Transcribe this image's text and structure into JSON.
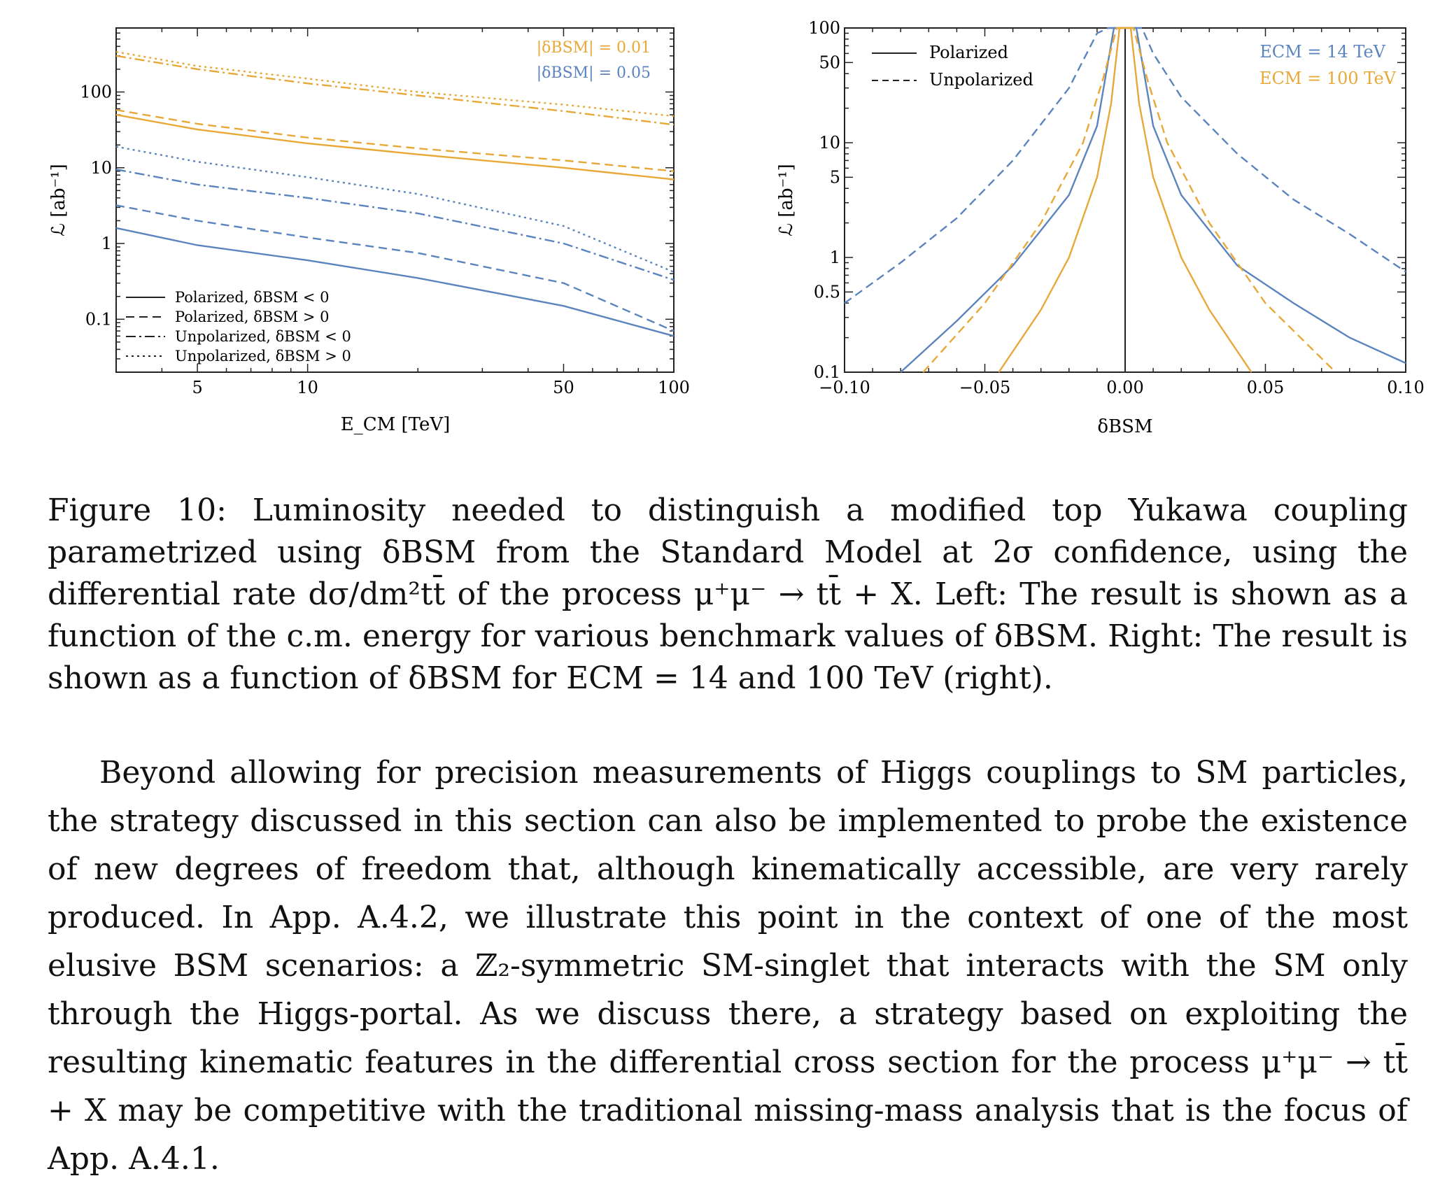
{
  "colors": {
    "orange": "#E8A838",
    "blue": "#5B84BE",
    "axis": "#222222"
  },
  "chart_data": [
    {
      "type": "line",
      "title": "",
      "xlabel": "E_CM [TeV]",
      "ylabel": "ℒ [ab⁻¹]",
      "xscale": "log",
      "yscale": "log",
      "xlim": [
        3,
        100
      ],
      "ylim": [
        0.02,
        700
      ],
      "xticks": [
        5,
        10,
        50,
        100
      ],
      "xtick_labels": [
        "5",
        "10",
        "50",
        "100"
      ],
      "yticks": [
        0.1,
        1,
        10,
        100
      ],
      "ytick_labels": [
        "0.1",
        "1",
        "10",
        "100"
      ],
      "grid": false,
      "legend_top": [
        "|δBSM| = 0.01",
        "|δBSM| = 0.05"
      ],
      "legend_bottom": [
        "Polarized, δBSM < 0",
        "Polarized, δBSM > 0",
        "Unpolarized, δBSM < 0",
        "Unpolarized, δBSM > 0"
      ],
      "series": [
        {
          "color": "orange",
          "style": "solid",
          "x": [
            3,
            5,
            10,
            20,
            50,
            100
          ],
          "y": [
            50,
            32,
            21,
            15,
            10,
            7
          ]
        },
        {
          "color": "orange",
          "style": "dashed",
          "x": [
            3,
            5,
            10,
            20,
            50,
            100
          ],
          "y": [
            58,
            38,
            25,
            18,
            12.5,
            9
          ]
        },
        {
          "color": "orange",
          "style": "dashdot",
          "x": [
            3,
            5,
            10,
            20,
            50,
            100
          ],
          "y": [
            300,
            200,
            130,
            90,
            56,
            37
          ]
        },
        {
          "color": "orange",
          "style": "dotted",
          "x": [
            3,
            5,
            10,
            20,
            50,
            100
          ],
          "y": [
            340,
            220,
            150,
            100,
            68,
            48
          ]
        },
        {
          "color": "blue",
          "style": "solid",
          "x": [
            3,
            5,
            10,
            20,
            50,
            100
          ],
          "y": [
            1.6,
            0.95,
            0.6,
            0.35,
            0.15,
            0.06
          ]
        },
        {
          "color": "blue",
          "style": "dashed",
          "x": [
            3,
            5,
            10,
            20,
            50,
            100
          ],
          "y": [
            3.2,
            2.0,
            1.2,
            0.75,
            0.3,
            0.07
          ]
        },
        {
          "color": "blue",
          "style": "dashdot",
          "x": [
            3,
            5,
            10,
            20,
            50,
            100
          ],
          "y": [
            9.5,
            6.0,
            4.0,
            2.5,
            1.0,
            0.33
          ]
        },
        {
          "color": "blue",
          "style": "dotted",
          "x": [
            3,
            5,
            10,
            20,
            50,
            100
          ],
          "y": [
            19,
            12,
            7.5,
            4.5,
            1.7,
            0.42
          ]
        }
      ]
    },
    {
      "type": "line",
      "title": "",
      "xlabel": "δBSM",
      "ylabel": "ℒ [ab⁻¹]",
      "xscale": "linear",
      "yscale": "log",
      "xlim": [
        -0.1,
        0.1
      ],
      "ylim": [
        0.1,
        100
      ],
      "xticks": [
        -0.1,
        -0.05,
        0.0,
        0.05,
        0.1
      ],
      "xtick_labels": [
        "−0.10",
        "−0.05",
        "0.00",
        "0.05",
        "0.10"
      ],
      "yticks": [
        0.1,
        0.5,
        1,
        5,
        10,
        50,
        100
      ],
      "ytick_labels": [
        "0.1",
        "0.5",
        "1",
        "5",
        "10",
        "50",
        "100"
      ],
      "grid": false,
      "legend_left": [
        "Polarized",
        "Unpolarized"
      ],
      "legend_right": [
        "ECM = 14 TeV",
        "ECM = 100 TeV"
      ],
      "series": [
        {
          "color": "blue",
          "style": "solid",
          "x": [
            -0.08,
            -0.06,
            -0.04,
            -0.02,
            -0.01,
            -0.004,
            0.004,
            0.01,
            0.02,
            0.04,
            0.06,
            0.08,
            0.1
          ],
          "y": [
            0.1,
            0.28,
            0.85,
            3.5,
            14,
            100,
            100,
            14,
            3.5,
            0.85,
            0.4,
            0.2,
            0.12
          ]
        },
        {
          "color": "blue",
          "style": "dashed",
          "x": [
            -0.1,
            -0.08,
            -0.06,
            -0.04,
            -0.02,
            -0.01,
            -0.006,
            0.006,
            0.01,
            0.02,
            0.04,
            0.06,
            0.08,
            0.1
          ],
          "y": [
            0.4,
            0.9,
            2.2,
            7,
            30,
            90,
            100,
            100,
            60,
            25,
            8,
            3.2,
            1.6,
            0.75
          ]
        },
        {
          "color": "orange",
          "style": "solid",
          "x": [
            -0.045,
            -0.03,
            -0.02,
            -0.01,
            -0.005,
            -0.002,
            0.002,
            0.005,
            0.01,
            0.02,
            0.03,
            0.045
          ],
          "y": [
            0.1,
            0.35,
            1.0,
            5,
            22,
            100,
            100,
            22,
            5,
            1.0,
            0.35,
            0.1
          ]
        },
        {
          "color": "orange",
          "style": "dashed",
          "x": [
            -0.072,
            -0.05,
            -0.03,
            -0.015,
            -0.008,
            -0.003,
            0.003,
            0.008,
            0.015,
            0.03,
            0.05,
            0.075
          ],
          "y": [
            0.1,
            0.4,
            2.0,
            10,
            35,
            100,
            100,
            35,
            10,
            2.0,
            0.4,
            0.1
          ]
        }
      ]
    }
  ],
  "caption": "Figure 10: Luminosity needed to distinguish a modified top Yukawa coupling parametrized using δBSM from the Standard Model at 2σ confidence, using the differential rate dσ/dm²tt̄ of the process μ⁺μ⁻ → tt̄ + X. Left: The result is shown as a function of the c.m. energy for various benchmark values of δBSM. Right: The result is shown as a function of δBSM for ECM = 14 and 100 TeV (right).",
  "paragraph": "Beyond allowing for precision measurements of Higgs couplings to SM particles, the strategy discussed in this section can also be implemented to probe the existence of new degrees of freedom that, although kinematically accessible, are very rarely produced. In App. A.4.2, we illustrate this point in the context of one of the most elusive BSM scenarios: a ℤ₂-symmetric SM-singlet that interacts with the SM only through the Higgs-portal. As we discuss there, a strategy based on exploiting the resulting kinematic features in the differential cross section for the process μ⁺μ⁻ → tt̄ + X may be competitive with the traditional missing-mass analysis that is the focus of App. A.4.1."
}
